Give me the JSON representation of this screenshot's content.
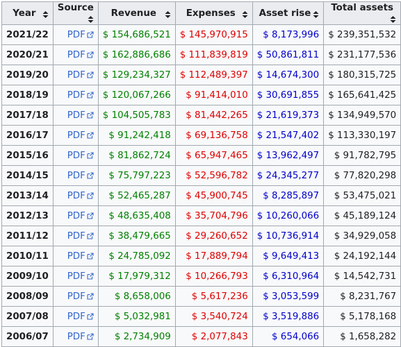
{
  "table": {
    "headers": [
      "Year",
      "Source",
      "Revenue",
      "Expenses",
      "Asset rise",
      "Total assets"
    ],
    "rows": [
      [
        "2021/22",
        "PDF",
        "$ 154,686,521",
        "$ 145,970,915",
        "$ 8,173,996",
        "$ 239,351,532"
      ],
      [
        "2020/21",
        "PDF",
        "$ 162,886,686",
        "$ 111,839,819",
        "$ 50,861,811",
        "$ 231,177,536"
      ],
      [
        "2019/20",
        "PDF",
        "$ 129,234,327",
        "$ 112,489,397",
        "$ 14,674,300",
        "$ 180,315,725"
      ],
      [
        "2018/19",
        "PDF",
        "$ 120,067,266",
        "$ 91,414,010",
        "$ 30,691,855",
        "$ 165,641,425"
      ],
      [
        "2017/18",
        "PDF",
        "$ 104,505,783",
        "$ 81,442,265",
        "$ 21,619,373",
        "$ 134,949,570"
      ],
      [
        "2016/17",
        "PDF",
        "$ 91,242,418",
        "$ 69,136,758",
        "$ 21,547,402",
        "$ 113,330,197"
      ],
      [
        "2015/16",
        "PDF",
        "$ 81,862,724",
        "$ 65,947,465",
        "$ 13,962,497",
        "$ 91,782,795"
      ],
      [
        "2014/15",
        "PDF",
        "$ 75,797,223",
        "$ 52,596,782",
        "$ 24,345,277",
        "$ 77,820,298"
      ],
      [
        "2013/14",
        "PDF",
        "$ 52,465,287",
        "$ 45,900,745",
        "$ 8,285,897",
        "$ 53,475,021"
      ],
      [
        "2012/13",
        "PDF",
        "$ 48,635,408",
        "$ 35,704,796",
        "$ 10,260,066",
        "$ 45,189,124"
      ],
      [
        "2011/12",
        "PDF",
        "$ 38,479,665",
        "$ 29,260,652",
        "$ 10,736,914",
        "$ 34,929,058"
      ],
      [
        "2010/11",
        "PDF",
        "$ 24,785,092",
        "$ 17,889,794",
        "$ 9,649,413",
        "$ 24,192,144"
      ],
      [
        "2009/10",
        "PDF",
        "$ 17,979,312",
        "$ 10,266,793",
        "$ 6,310,964",
        "$ 14,542,731"
      ],
      [
        "2008/09",
        "PDF",
        "$ 8,658,006",
        "$ 5,617,236",
        "$ 3,053,599",
        "$ 8,231,767"
      ],
      [
        "2007/08",
        "PDF",
        "$ 5,032,981",
        "$ 3,540,724",
        "$ 3,519,886",
        "$ 5,178,168"
      ],
      [
        "2006/07",
        "PDF",
        "$ 2,734,909",
        "$ 2,077,843",
        "$ 654,066",
        "$ 1,658,282"
      ]
    ]
  }
}
